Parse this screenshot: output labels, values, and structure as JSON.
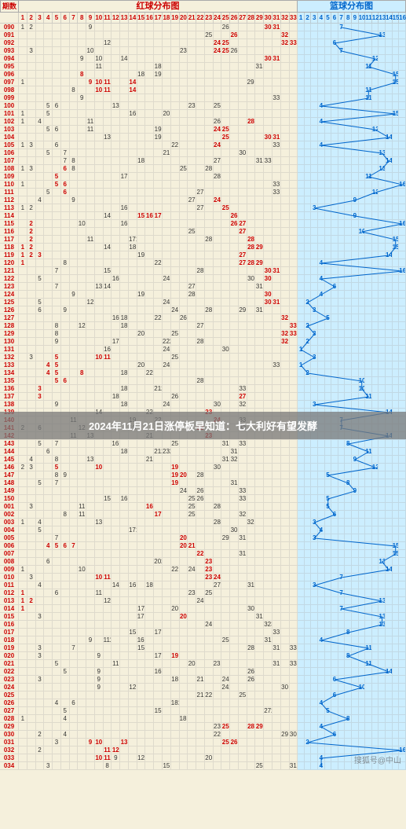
{
  "header": {
    "period_label": "期数",
    "red_title": "红球分布图",
    "blue_title": "篮球分布图"
  },
  "red_cols": 33,
  "blue_cols": 16,
  "banner_text": "2024年11月21日涨停板早知道：七大利好有望发酵",
  "banner_row_index": 50,
  "watermark": "搜狐号@中山",
  "colors": {
    "bg_main": "#f5f0dc",
    "bg_blue": "#cceeff",
    "red_text": "#c00",
    "blue_text": "#0066cc",
    "grid_line": "#aaa",
    "blue_line_stroke": "#0066cc"
  },
  "rows": [
    {
      "period": "090",
      "red_hits": [
        30,
        31
      ],
      "red_miss": {
        "1": 1,
        "2": 2,
        "9": 9,
        "25": 26
      },
      "blue": 7
    },
    {
      "period": "091",
      "red_hits": [
        26,
        32
      ],
      "red_miss": {
        "23": 25
      },
      "blue": 13
    },
    {
      "period": "092",
      "red_hits": [
        24,
        25,
        32,
        33
      ],
      "red_miss": {
        "11": 12
      },
      "blue": 6
    },
    {
      "period": "093",
      "red_hits": [
        24,
        25
      ],
      "red_miss": {
        "2": 3,
        "9": 10,
        "20": 23,
        "26": 26
      },
      "blue": 7
    },
    {
      "period": "094",
      "red_hits": [
        30,
        31
      ],
      "red_miss": {
        "8": 9,
        "10": 10,
        "13": 14
      },
      "blue": 12
    },
    {
      "period": "095",
      "red_hits": [],
      "red_miss": {
        "10": 11,
        "17": 18,
        "29": 3132
      },
      "blue": 11
    },
    {
      "period": "096",
      "red_hits": [
        8
      ],
      "red_miss": {
        "15": 18,
        "17": 19
      },
      "blue": 15
    },
    {
      "period": "097",
      "red_hits": [
        9,
        10,
        11,
        14
      ],
      "red_miss": {
        "1": 1,
        "28": 2930
      },
      "blue": 15
    },
    {
      "period": "098",
      "red_hits": [
        10,
        11,
        14
      ],
      "red_miss": {
        "7": 8
      },
      "blue": 11
    },
    {
      "period": "099",
      "red_hits": [],
      "red_miss": {
        "8": 9,
        "31": 33
      },
      "blue": 11
    },
    {
      "period": "100",
      "red_hits": [],
      "red_miss": {
        "4": 5,
        "5": 6,
        "12": 13,
        "21": 23,
        "24": 25
      },
      "blue": 4
    },
    {
      "period": "101",
      "red_hits": [],
      "red_miss": {
        "1": 1,
        "4": 5,
        "14": 16,
        "18": 20
      },
      "blue": 15
    },
    {
      "period": "102",
      "red_hits": [
        28
      ],
      "red_miss": {
        "1": 1,
        "3": 4,
        "9": 11,
        "24": 26
      },
      "blue": 4
    },
    {
      "period": "103",
      "red_hits": [
        24,
        25
      ],
      "red_miss": {
        "4": 5,
        "5": 6,
        "9": 11,
        "17": 19
      },
      "blue": 12
    },
    {
      "period": "104",
      "red_hits": [
        25,
        30,
        31
      ],
      "red_miss": {
        "11": 13,
        "17": 19
      },
      "blue": 14
    },
    {
      "period": "105",
      "red_hits": [
        24
      ],
      "red_miss": {
        "1": 1,
        "2": 3,
        "5": 6,
        "19": 22,
        "31": 33
      },
      "blue": 4
    },
    {
      "period": "106",
      "red_hits": [],
      "red_miss": {
        "4": 5,
        "6": 7,
        "18": 21,
        "27": 30
      },
      "blue": 13
    },
    {
      "period": "107",
      "red_hits": [],
      "red_miss": {
        "6": 7,
        "7": 8,
        "15": 18,
        "24": 27,
        "29": 31,
        "30": 33
      },
      "blue": 14
    },
    {
      "period": "108",
      "red_hits": [
        6
      ],
      "red_miss": {
        "1": 1,
        "2": 3,
        "7": 8,
        "20": 25,
        "23": 28
      },
      "blue": 13
    },
    {
      "period": "109",
      "red_hits": [
        5
      ],
      "red_miss": {
        "13": 17,
        "24": 28
      },
      "blue": 11
    },
    {
      "period": "110",
      "red_hits": [
        5,
        6
      ],
      "red_miss": {
        "1": 1,
        "31": 33
      },
      "blue": 16
    },
    {
      "period": "111",
      "red_hits": [
        6
      ],
      "red_miss": {
        "4": 5,
        "22": 27,
        "31": 33
      },
      "blue": 12
    },
    {
      "period": "112",
      "red_hits": [
        24
      ],
      "red_miss": {
        "3": 4,
        "7": 9,
        "21": 27
      },
      "blue": 9
    },
    {
      "period": "113",
      "red_hits": [
        25
      ],
      "red_miss": {
        "1": 1,
        "2": 2,
        "13": 16,
        "22": 27
      },
      "blue": 3
    },
    {
      "period": "114",
      "red_hits": [
        15,
        16,
        17,
        26
      ],
      "red_miss": {
        "11": 14
      },
      "blue": 9
    },
    {
      "period": "115",
      "red_hits": [
        2,
        26,
        27
      ],
      "red_miss": {
        "8": 10,
        "13": 16
      },
      "blue": 16
    },
    {
      "period": "116",
      "red_hits": [
        2,
        27
      ],
      "red_miss": {
        "21": 25
      },
      "blue": 10
    },
    {
      "period": "117",
      "red_hits": [
        2,
        28
      ],
      "red_miss": {
        "9": 11,
        "14": 1718,
        "23": 28
      },
      "blue": 15
    },
    {
      "period": "118",
      "red_hits": [
        1,
        2,
        28,
        29
      ],
      "red_miss": {
        "11": 14,
        "14": 18
      },
      "blue": 15
    },
    {
      "period": "119",
      "red_hits": [
        1,
        2,
        3,
        27
      ],
      "red_miss": {
        "15": 19
      },
      "blue": 14
    },
    {
      "period": "120",
      "red_hits": [
        1,
        27,
        28,
        29
      ],
      "red_miss": {
        "6": 8,
        "17": 22
      },
      "blue": 4
    },
    {
      "period": "121",
      "red_hits": [
        30,
        31
      ],
      "red_miss": {
        "5": 7,
        "11": 15,
        "22": 28
      },
      "blue": 16
    },
    {
      "period": "122",
      "red_hits": [
        30
      ],
      "red_miss": {
        "3": 5,
        "12": 16,
        "18": 24,
        "28": 30
      },
      "blue": 4
    },
    {
      "period": "123",
      "red_hits": [],
      "red_miss": {
        "5": 7,
        "10": 13,
        "11": 14,
        "21": 27,
        "29": 31
      },
      "blue": 6
    },
    {
      "period": "124",
      "red_hits": [
        30
      ],
      "red_miss": {
        "7": 9,
        "15": 19,
        "21": 28
      },
      "blue": 4
    },
    {
      "period": "125",
      "red_hits": [
        30,
        31
      ],
      "red_miss": {
        "3": 5,
        "9": 12,
        "18": 24
      },
      "blue": 2
    },
    {
      "period": "126",
      "red_hits": [],
      "red_miss": {
        "3": 6,
        "6": 9,
        "19": 24,
        "23": 28,
        "27": 29,
        "29": 31
      },
      "blue": 3
    },
    {
      "period": "127",
      "red_hits": [
        32
      ],
      "red_miss": {
        "12": 16,
        "13": 18,
        "17": 22,
        "20": 26
      },
      "blue": 5
    },
    {
      "period": "128",
      "red_hits": [
        33
      ],
      "red_miss": {
        "5": 8,
        "8": 12,
        "13": 18,
        "22": 27
      },
      "blue": 2
    },
    {
      "period": "129",
      "red_hits": [
        32,
        33
      ],
      "red_miss": {
        "5": 8,
        "15": 20,
        "19": 25
      },
      "blue": 3
    },
    {
      "period": "130",
      "red_hits": [
        32
      ],
      "red_miss": {
        "5": 9,
        "12": 17,
        "18": 2223,
        "22": 28
      },
      "blue": 2
    },
    {
      "period": "131",
      "red_hits": [],
      "red_miss": {
        "11": 16,
        "18": 24,
        "25": 30
      },
      "blue": 1
    },
    {
      "period": "132",
      "red_hits": [
        5,
        10,
        11
      ],
      "red_miss": {
        "2": 3,
        "19": 25
      },
      "blue": 3
    },
    {
      "period": "133",
      "red_hits": [
        4,
        5
      ],
      "red_miss": {
        "15": 20,
        "18": 24,
        "31": 33
      },
      "blue": 1
    },
    {
      "period": "134",
      "red_hits": [
        4,
        5,
        8
      ],
      "red_miss": {
        "13": 18,
        "16": 22
      },
      "blue": 2
    },
    {
      "period": "135",
      "red_hits": [
        5,
        6
      ],
      "red_miss": {
        "22": 28
      },
      "blue": 10
    },
    {
      "period": "136",
      "red_hits": [
        3
      ],
      "red_miss": {
        "13": 18,
        "17": 2122,
        "27": 33
      },
      "blue": 10
    },
    {
      "period": "137",
      "red_hits": [
        3,
        27
      ],
      "red_miss": {
        "12": 18,
        "19": 26
      },
      "blue": 11
    },
    {
      "period": "138",
      "red_hits": [],
      "red_miss": {
        "5": 9,
        "13": 18,
        "18": 24,
        "24": 30,
        "27": 32
      },
      "blue": 3
    },
    {
      "period": "139",
      "red_hits": [
        23
      ],
      "red_miss": {
        "10": 14,
        "16": 22,
        "23": 29
      },
      "blue": 14
    },
    {
      "period": "140",
      "red_hits": [
        24
      ],
      "red_miss": {
        "7": 11,
        "14": 19,
        "17": 22,
        "27": 33
      },
      "blue": 7
    },
    {
      "period": "141",
      "red_hits": [
        22
      ],
      "red_miss": {
        "1": 2,
        "3": 6,
        "8": 12,
        "14": 19,
        "27": 33
      },
      "blue": 7
    },
    {
      "period": "142",
      "red_hits": [
        23
      ],
      "red_miss": {
        "7": 11,
        "9": 13,
        "16": 21
      },
      "blue": 14
    },
    {
      "period": "143",
      "red_hits": [],
      "red_miss": {
        "3": 5,
        "5": 7,
        "12": 1617,
        "19": 25,
        "25": 31,
        "27": 33
      },
      "blue": 8
    },
    {
      "period": "144",
      "red_hits": [],
      "red_miss": {
        "4": 6,
        "13": 18,
        "17": 2122,
        "18": 2324,
        "26": 31
      },
      "blue": 11
    },
    {
      "period": "145",
      "red_hits": [],
      "red_miss": {
        "2": 4,
        "5": 8,
        "9": 13,
        "16": 21,
        "25": 31,
        "26": 32
      },
      "blue": 9
    },
    {
      "period": "146",
      "red_hits": [
        5,
        10,
        19
      ],
      "red_miss": {
        "1": 2,
        "2": 3,
        "24": 30
      },
      "blue": 12
    },
    {
      "period": "147",
      "red_hits": [
        19,
        20
      ],
      "red_miss": {
        "5": 8,
        "6": 9,
        "22": 28
      },
      "blue": 5
    },
    {
      "period": "148",
      "red_hits": [
        19
      ],
      "red_miss": {
        "3": 5,
        "5": 7,
        "26": 31
      },
      "blue": 8
    },
    {
      "period": "149",
      "red_hits": [],
      "red_miss": {
        "20": 24,
        "22": 26,
        "27": 33
      },
      "blue": 9
    },
    {
      "period": "150",
      "red_hits": [],
      "red_miss": {
        "11": 15,
        "13": 16,
        "21": 25,
        "22": 26,
        "27": 33
      },
      "blue": 5
    },
    {
      "period": "001",
      "red_hits": [
        16
      ],
      "red_miss": {
        "2": 3,
        "8": 11,
        "21": 25,
        "24": 28
      },
      "blue": 5
    },
    {
      "period": "002",
      "red_hits": [
        17
      ],
      "red_miss": {
        "6": 8,
        "8": 11,
        "21": 25,
        "27": 32
      },
      "blue": 6
    },
    {
      "period": "003",
      "red_hits": [],
      "red_miss": {
        "1": 1,
        "3": 4,
        "10": 13,
        "24": 28,
        "28": 3233
      },
      "blue": 3
    },
    {
      "period": "004",
      "red_hits": [],
      "red_miss": {
        "3": 5,
        "14": 1718,
        "26": 30
      },
      "blue": 4
    },
    {
      "period": "005",
      "red_hits": [
        20
      ],
      "red_miss": {
        "5": 7,
        "25": 29,
        "27": 31
      },
      "blue": 3
    },
    {
      "period": "006",
      "red_hits": [
        4,
        5,
        6,
        7,
        20,
        21
      ],
      "red_miss": {},
      "blue": 15
    },
    {
      "period": "007",
      "red_hits": [
        22
      ],
      "red_miss": {
        "27": 31
      },
      "blue": 15
    },
    {
      "period": "008",
      "red_hits": [
        23
      ],
      "red_miss": {
        "4": 6,
        "17": 2021
      },
      "blue": 13
    },
    {
      "period": "009",
      "red_hits": [
        23
      ],
      "red_miss": {
        "1": 1,
        "8": 10,
        "19": 22,
        "21": 24
      },
      "blue": 14
    },
    {
      "period": "010",
      "red_hits": [
        10,
        11,
        23,
        24
      ],
      "red_miss": {
        "2": 3
      },
      "blue": 7
    },
    {
      "period": "011",
      "red_hits": [],
      "red_miss": {
        "3": 4,
        "12": 14,
        "14": 16,
        "16": 18,
        "24": 27,
        "28": 31
      },
      "blue": 3
    },
    {
      "period": "012",
      "red_hits": [
        1
      ],
      "red_miss": {
        "5": 6,
        "10": 11,
        "21": 23,
        "23": 25
      },
      "blue": 7
    },
    {
      "period": "013",
      "red_hits": [
        1,
        2
      ],
      "red_miss": {
        "11": 12,
        "22": 24
      },
      "blue": 13
    },
    {
      "period": "014",
      "red_hits": [
        1
      ],
      "red_miss": {
        "15": 17,
        "19": 20,
        "28": 30
      },
      "blue": 7
    },
    {
      "period": "015",
      "red_hits": [
        20
      ],
      "red_miss": {
        "3": 3,
        "15": 1718,
        "29": 31
      },
      "blue": 13
    },
    {
      "period": "016",
      "red_hits": [],
      "red_miss": {
        "23": 24,
        "30": 3233
      },
      "blue": 13
    },
    {
      "period": "017",
      "red_hits": [],
      "red_miss": {
        "14": 15,
        "17": 17,
        "31": 33
      },
      "blue": 8
    },
    {
      "period": "018",
      "red_hits": [],
      "red_miss": {
        "9": 9,
        "11": 1112,
        "15": 1617,
        "25": 25,
        "30": 31
      },
      "blue": 4
    },
    {
      "period": "019",
      "red_hits": [],
      "red_miss": {
        "3": 3,
        "7": 7,
        "15": 15,
        "28": 28,
        "31": 31,
        "33": 33
      },
      "blue": 11
    },
    {
      "period": "020",
      "red_hits": [
        19
      ],
      "red_miss": {
        "3": 3,
        "10": 9,
        "17": 17
      },
      "blue": 8
    },
    {
      "period": "021",
      "red_hits": [],
      "red_miss": {
        "5": 5,
        "12": 11,
        "21": 20,
        "24": 2324,
        "31": 31,
        "33": 33
      },
      "blue": 11
    },
    {
      "period": "022",
      "red_hits": [],
      "red_miss": {
        "6": 5,
        "10": 9,
        "17": 16,
        "28": 26
      },
      "blue": 14
    },
    {
      "period": "023",
      "red_hits": [],
      "red_miss": {
        "3": 3,
        "10": 9,
        "19": 18,
        "22": 21,
        "25": 24,
        "28": 26
      },
      "blue": 6
    },
    {
      "period": "024",
      "red_hits": [],
      "red_miss": {
        "10": 9,
        "14": 12,
        "25": 2425,
        "32": 30
      },
      "blue": 10
    },
    {
      "period": "025",
      "red_hits": [],
      "red_miss": {
        "22": 21,
        "23": 22,
        "27": 25
      },
      "blue": 6
    },
    {
      "period": "026",
      "red_hits": [],
      "red_miss": {
        "5": 4,
        "7": 6,
        "19": 181920,
        "34": 31
      },
      "blue": 4
    },
    {
      "period": "027",
      "red_hits": [],
      "red_miss": {
        "6": 5,
        "17": 15,
        "30": 2728
      },
      "blue": 5
    },
    {
      "period": "028",
      "red_hits": [],
      "red_miss": {
        "1": 1,
        "6": 4,
        "20": 1819,
        "35": 33
      },
      "blue": 8
    },
    {
      "period": "029",
      "red_hits": [
        25,
        28,
        29
      ],
      "red_miss": {
        "24": 23,
        "35": 33
      },
      "blue": 4
    },
    {
      "period": "030",
      "red_hits": [],
      "red_miss": {
        "3": 2,
        "6": 4,
        "24": 22,
        "32": 29,
        "33": 30,
        "35": 33
      },
      "blue": 6
    },
    {
      "period": "031",
      "red_hits": [
        9,
        10,
        13,
        25,
        26
      ],
      "red_miss": {
        "5": 3
      },
      "blue": 2
    },
    {
      "period": "032",
      "red_hits": [
        11,
        12
      ],
      "red_miss": {
        "3": 2,
        "35": 33
      },
      "blue": 16
    },
    {
      "period": "033",
      "red_hits": [
        10,
        11
      ],
      "red_miss": {
        "12": 9,
        "15": 12,
        "23": 20,
        "35": 32
      },
      "blue": 4
    },
    {
      "period": "034",
      "red_hits": [],
      "red_miss": {
        "4": 3,
        "11": 8,
        "18": 15,
        "29": 25,
        "33": 31
      },
      "blue": 4
    }
  ]
}
